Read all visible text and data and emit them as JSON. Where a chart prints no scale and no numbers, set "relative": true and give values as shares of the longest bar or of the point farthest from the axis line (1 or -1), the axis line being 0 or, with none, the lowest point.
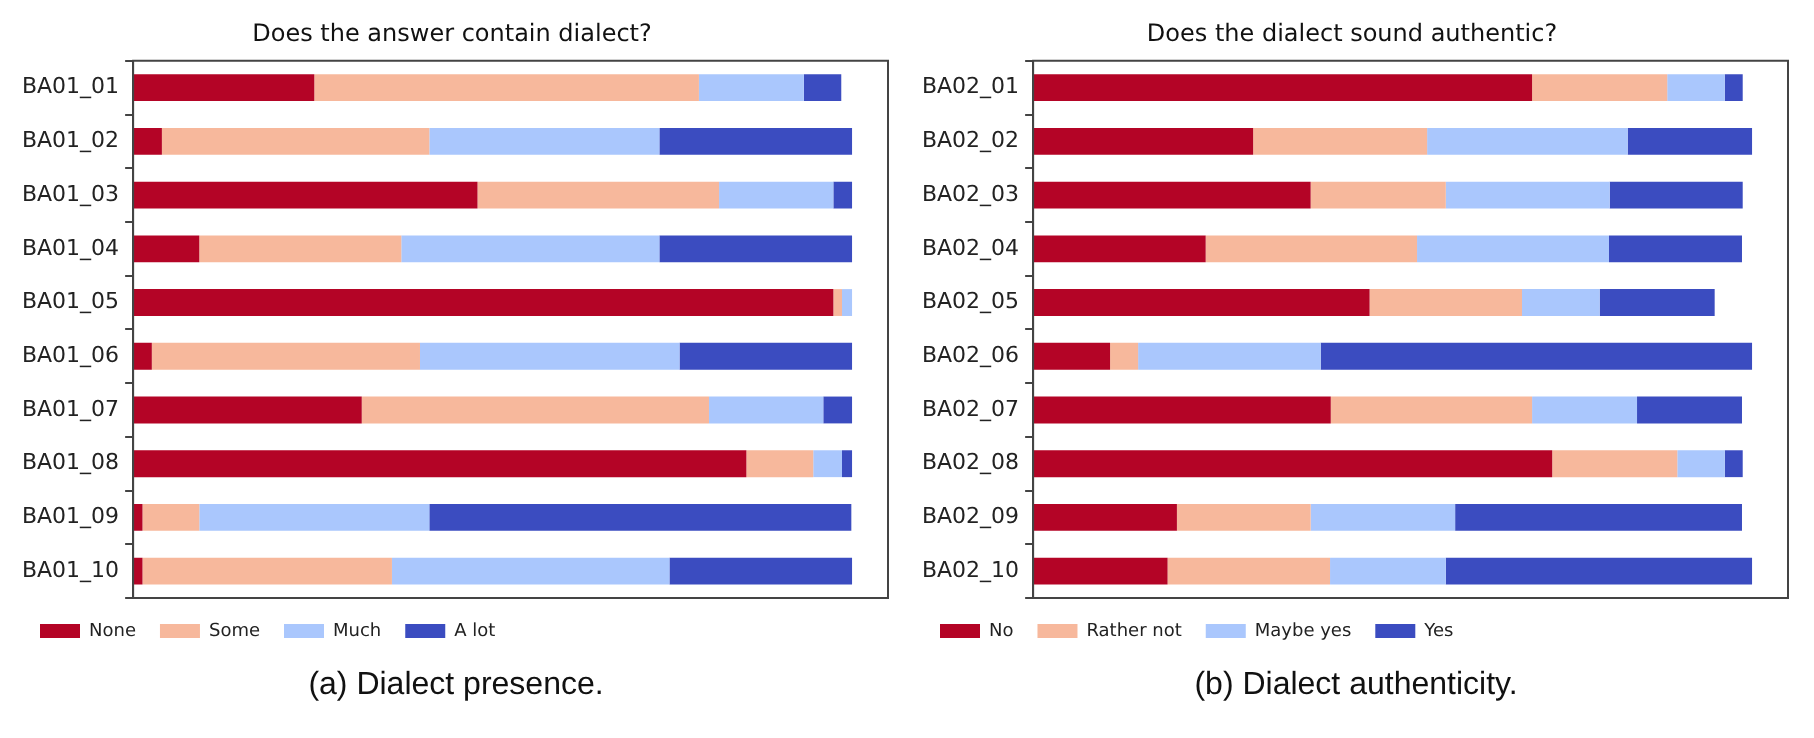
{
  "chart_data": [
    {
      "type": "bar",
      "orientation": "horizontal",
      "stacked": true,
      "relative": true,
      "title": "Does the answer contain dialect?",
      "annotations": [
        "(a) Dialect presence."
      ],
      "legend": "bottom left",
      "grid": false,
      "tick_labels": "y",
      "categories": [
        "BA01_01",
        "BA01_02",
        "BA01_03",
        "BA01_04",
        "BA01_05",
        "BA01_06",
        "BA01_07",
        "BA01_08",
        "BA01_09",
        "BA01_10"
      ],
      "series": [
        {
          "name": "None",
          "color": "#b40426",
          "values": [
            0.252,
            0.04,
            0.479,
            0.092,
            0.974,
            0.026,
            0.318,
            0.853,
            0.013,
            0.013
          ]
        },
        {
          "name": "Some",
          "color": "#f7b89c",
          "values": [
            0.535,
            0.372,
            0.336,
            0.281,
            0.012,
            0.373,
            0.483,
            0.093,
            0.079,
            0.347
          ]
        },
        {
          "name": "Much",
          "color": "#aac7fd",
          "values": [
            0.146,
            0.32,
            0.159,
            0.359,
            0.014,
            0.361,
            0.159,
            0.04,
            0.32,
            0.386
          ]
        },
        {
          "name": "A lot",
          "color": "#3b4cc0",
          "values": [
            0.052,
            0.268,
            0.026,
            0.268,
            0,
            0.24,
            0.04,
            0.014,
            0.587,
            0.254
          ]
        }
      ]
    },
    {
      "type": "bar",
      "orientation": "horizontal",
      "stacked": true,
      "relative": true,
      "title": "Does the dialect sound authentic?",
      "annotations": [
        "(b) Dialect authenticity."
      ],
      "legend": "bottom left",
      "grid": false,
      "tick_labels": "y",
      "categories": [
        "BA02_01",
        "BA02_02",
        "BA02_03",
        "BA02_04",
        "BA02_05",
        "BA02_06",
        "BA02_07",
        "BA02_08",
        "BA02_09",
        "BA02_10"
      ],
      "series": [
        {
          "name": "No",
          "color": "#b40426",
          "values": [
            0.694,
            0.306,
            0.386,
            0.24,
            0.468,
            0.107,
            0.414,
            0.722,
            0.2,
            0.187
          ]
        },
        {
          "name": "Rather not",
          "color": "#f7b89c",
          "values": [
            0.188,
            0.242,
            0.188,
            0.294,
            0.212,
            0.039,
            0.28,
            0.174,
            0.186,
            0.226
          ]
        },
        {
          "name": "Maybe yes",
          "color": "#aac7fd",
          "values": [
            0.08,
            0.279,
            0.228,
            0.267,
            0.108,
            0.254,
            0.146,
            0.066,
            0.201,
            0.161
          ]
        },
        {
          "name": "Yes",
          "color": "#3b4cc0",
          "values": [
            0.025,
            0.173,
            0.185,
            0.185,
            0.16,
            0.6,
            0.146,
            0.025,
            0.399,
            0.426
          ]
        }
      ]
    }
  ]
}
